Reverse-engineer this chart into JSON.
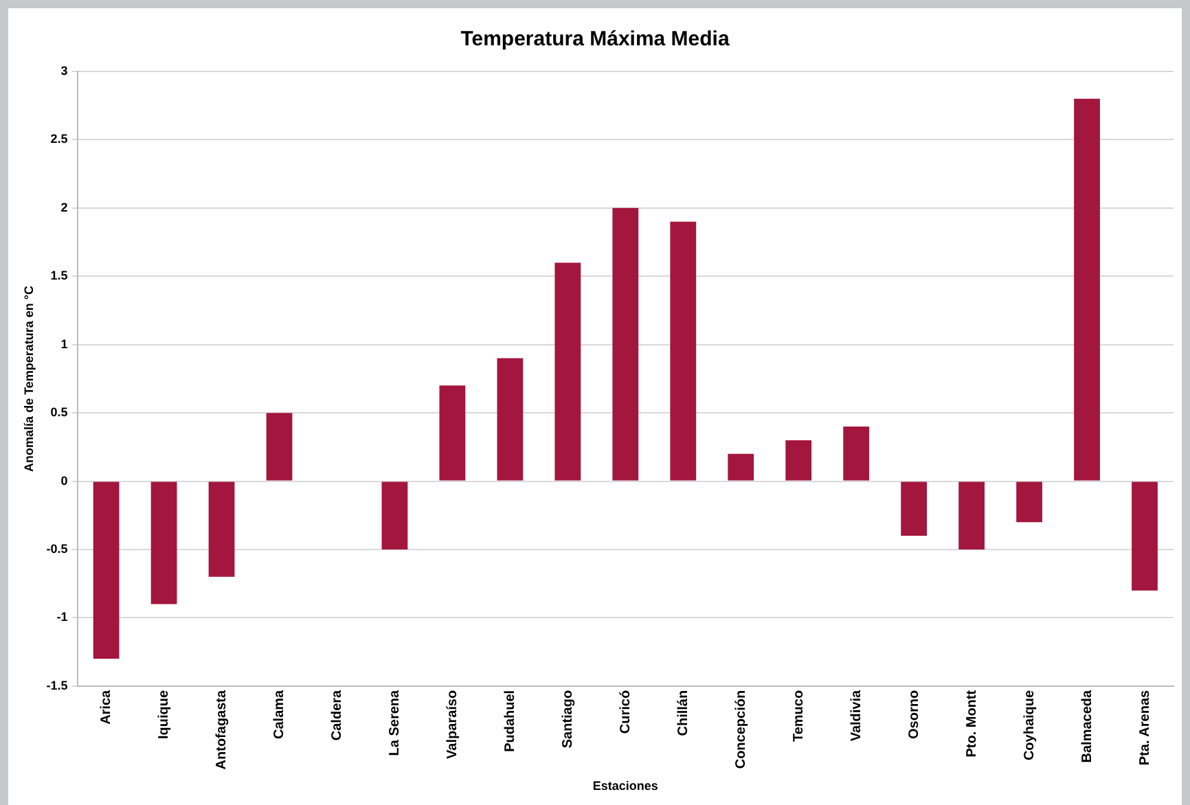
{
  "chart_data": {
    "type": "bar",
    "title": "Temperatura Máxima Media",
    "xlabel": "Estaciones",
    "ylabel": "Anomalía de Temperatura en °C",
    "categories": [
      "Arica",
      "Iquique",
      "Antofagasta",
      "Calama",
      "Caldera",
      "La Serena",
      "Valparaíso",
      "Pudahuel",
      "Santiago",
      "Curicó",
      "Chillán",
      "Concepción",
      "Temuco",
      "Valdivia",
      "Osorno",
      "Pto. Montt",
      "Coyhaique",
      "Balmaceda",
      "Pta. Arenas"
    ],
    "values": [
      -1.3,
      -0.9,
      -0.7,
      0.5,
      null,
      -0.5,
      0.7,
      0.9,
      1.6,
      2.0,
      1.9,
      0.2,
      0.3,
      0.4,
      -0.4,
      -0.5,
      -0.3,
      2.8,
      -0.8
    ],
    "color": "#a3163e",
    "ylim": [
      -1.5,
      3
    ],
    "yticks": [
      -1.5,
      -1,
      -0.5,
      0,
      0.5,
      1,
      1.5,
      2,
      2.5,
      3
    ],
    "grid": "y",
    "legend": false
  }
}
